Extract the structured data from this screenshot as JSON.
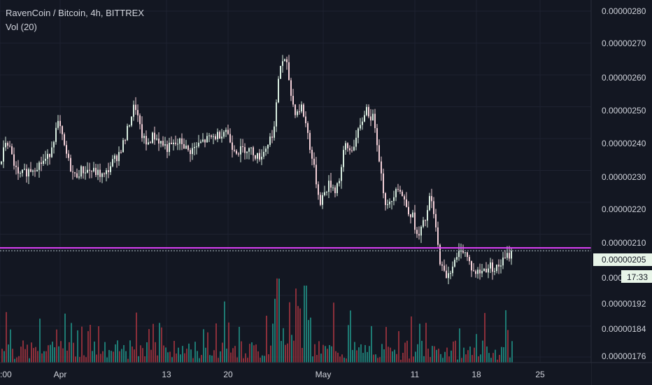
{
  "chart_data": {
    "type": "candlestick",
    "title": "RavenCoin / Bitcoin, 4h, BITTREX",
    "indicator_label": "Vol (20)",
    "y_axis": {
      "ticks": [
        "0.00000280",
        "0.00000270",
        "0.00000260",
        "0.00000250",
        "0.00000240",
        "0.00000230",
        "0.00000220",
        "0.00000210",
        "0.00000192",
        "0.00000184",
        "0.00000176"
      ],
      "price_ticks": [
        280,
        270,
        260,
        250,
        240,
        230,
        220,
        210
      ],
      "volume_ticks": [
        192,
        184,
        176
      ]
    },
    "x_axis": {
      "labels": [
        ":00",
        "Apr",
        "13",
        "20",
        "May",
        "11",
        "18",
        "25"
      ]
    },
    "current_price_label": "0.00000205",
    "countdown_label": "17:33",
    "partial_price_label": "0.000",
    "horizontal_line": {
      "value": 205.7,
      "color": "#e040fb"
    },
    "current_price_line": {
      "value": 205,
      "color": "#b0bec5"
    },
    "price_points": [
      [
        0,
        232
      ],
      [
        8,
        240
      ],
      [
        15,
        235
      ],
      [
        25,
        228
      ],
      [
        40,
        230
      ],
      [
        55,
        232
      ],
      [
        68,
        234
      ],
      [
        78,
        242
      ],
      [
        83,
        245
      ],
      [
        90,
        238
      ],
      [
        98,
        232
      ],
      [
        105,
        228
      ],
      [
        115,
        230
      ],
      [
        128,
        230
      ],
      [
        140,
        229
      ],
      [
        148,
        228
      ],
      [
        158,
        232
      ],
      [
        168,
        235
      ],
      [
        178,
        240
      ],
      [
        185,
        246
      ],
      [
        192,
        251
      ],
      [
        200,
        242
      ],
      [
        208,
        238
      ],
      [
        218,
        241
      ],
      [
        228,
        239
      ],
      [
        238,
        237
      ],
      [
        248,
        238
      ],
      [
        258,
        239
      ],
      [
        268,
        236
      ],
      [
        278,
        237
      ],
      [
        288,
        239
      ],
      [
        298,
        240
      ],
      [
        310,
        241
      ],
      [
        322,
        243
      ],
      [
        330,
        238
      ],
      [
        340,
        236
      ],
      [
        350,
        237
      ],
      [
        360,
        236
      ],
      [
        368,
        234
      ],
      [
        376,
        236
      ],
      [
        385,
        240
      ],
      [
        392,
        244
      ],
      [
        398,
        262
      ],
      [
        404,
        265
      ],
      [
        410,
        262
      ],
      [
        416,
        252
      ],
      [
        422,
        248
      ],
      [
        430,
        250
      ],
      [
        437,
        244
      ],
      [
        444,
        235
      ],
      [
        450,
        228
      ],
      [
        456,
        220
      ],
      [
        463,
        223
      ],
      [
        470,
        226
      ],
      [
        478,
        224
      ],
      [
        485,
        228
      ],
      [
        492,
        238
      ],
      [
        500,
        236
      ],
      [
        508,
        240
      ],
      [
        515,
        244
      ],
      [
        522,
        250
      ],
      [
        528,
        247
      ],
      [
        534,
        246
      ],
      [
        540,
        236
      ],
      [
        546,
        225
      ],
      [
        552,
        218
      ],
      [
        558,
        220
      ],
      [
        566,
        226
      ],
      [
        574,
        222
      ],
      [
        582,
        218
      ],
      [
        590,
        215
      ],
      [
        596,
        208
      ],
      [
        602,
        212
      ],
      [
        608,
        215
      ],
      [
        614,
        222
      ],
      [
        620,
        215
      ],
      [
        626,
        204
      ],
      [
        632,
        198
      ],
      [
        638,
        197
      ],
      [
        645,
        200
      ],
      [
        652,
        202
      ],
      [
        658,
        206
      ],
      [
        664,
        204
      ],
      [
        670,
        201
      ],
      [
        676,
        198
      ],
      [
        684,
        198
      ],
      [
        692,
        199
      ],
      [
        700,
        200
      ],
      [
        708,
        199
      ],
      [
        716,
        201
      ],
      [
        724,
        203
      ],
      [
        730,
        204
      ]
    ],
    "volume_ticks_note": "",
    "series": []
  }
}
